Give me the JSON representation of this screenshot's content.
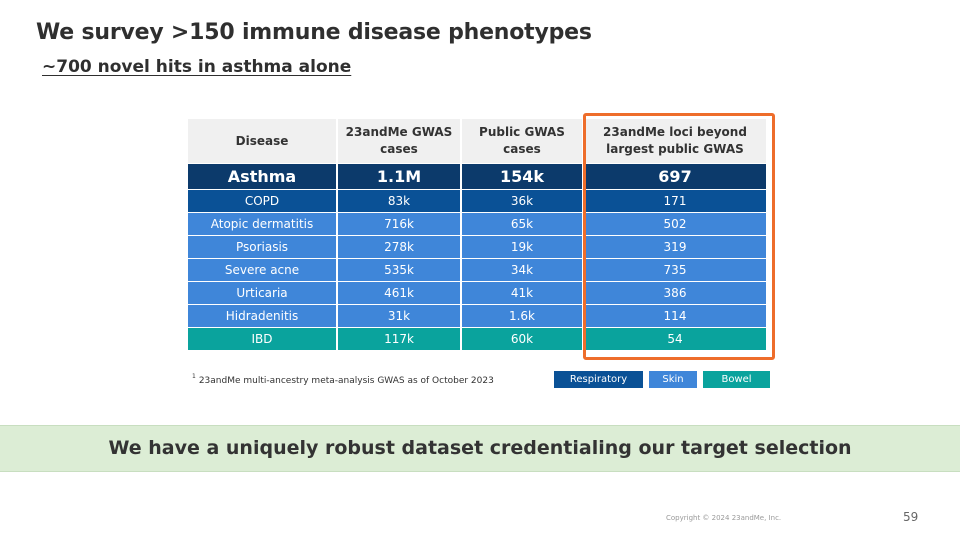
{
  "slide": {
    "title": "We survey >150 immune disease phenotypes",
    "subtitle": "~700 novel hits in asthma alone"
  },
  "table": {
    "headers": [
      "Disease",
      "23andMe GWAS cases",
      "Public GWAS cases",
      "23andMe loci beyond largest public GWAS"
    ],
    "rows": [
      {
        "disease": "Asthma",
        "gwas_cases": "1.1M",
        "public_cases": "154k",
        "loci": "697",
        "category": "highlight"
      },
      {
        "disease": "COPD",
        "gwas_cases": "83k",
        "public_cases": "36k",
        "loci": "171",
        "category": "Respiratory"
      },
      {
        "disease": "Atopic dermatitis",
        "gwas_cases": "716k",
        "public_cases": "65k",
        "loci": "502",
        "category": "Skin"
      },
      {
        "disease": "Psoriasis",
        "gwas_cases": "278k",
        "public_cases": "19k",
        "loci": "319",
        "category": "Skin"
      },
      {
        "disease": "Severe acne",
        "gwas_cases": "535k",
        "public_cases": "34k",
        "loci": "735",
        "category": "Skin"
      },
      {
        "disease": "Urticaria",
        "gwas_cases": "461k",
        "public_cases": "41k",
        "loci": "386",
        "category": "Skin"
      },
      {
        "disease": "Hidradenitis",
        "gwas_cases": "31k",
        "public_cases": "1.6k",
        "loci": "114",
        "category": "Skin"
      },
      {
        "disease": "IBD",
        "gwas_cases": "117k",
        "public_cases": "60k",
        "loci": "54",
        "category": "Bowel"
      }
    ]
  },
  "footnote": {
    "marker": "1",
    "text": "23andMe multi-ancestry meta-analysis GWAS as of October 2023"
  },
  "legend": [
    {
      "label": "Respiratory",
      "color": "#0a5196"
    },
    {
      "label": "Skin",
      "color": "#3f86d9"
    },
    {
      "label": "Bowel",
      "color": "#0aa39d"
    }
  ],
  "colors": {
    "highlight_row": "#0c3a6b",
    "highlight_border": "#ee6d2b",
    "banner_bg": "#dcedd5"
  },
  "banner": "We have a uniquely robust dataset credentialing our target selection",
  "copyright": "Copyright © 2024 23andMe, Inc.",
  "page_number": "59"
}
